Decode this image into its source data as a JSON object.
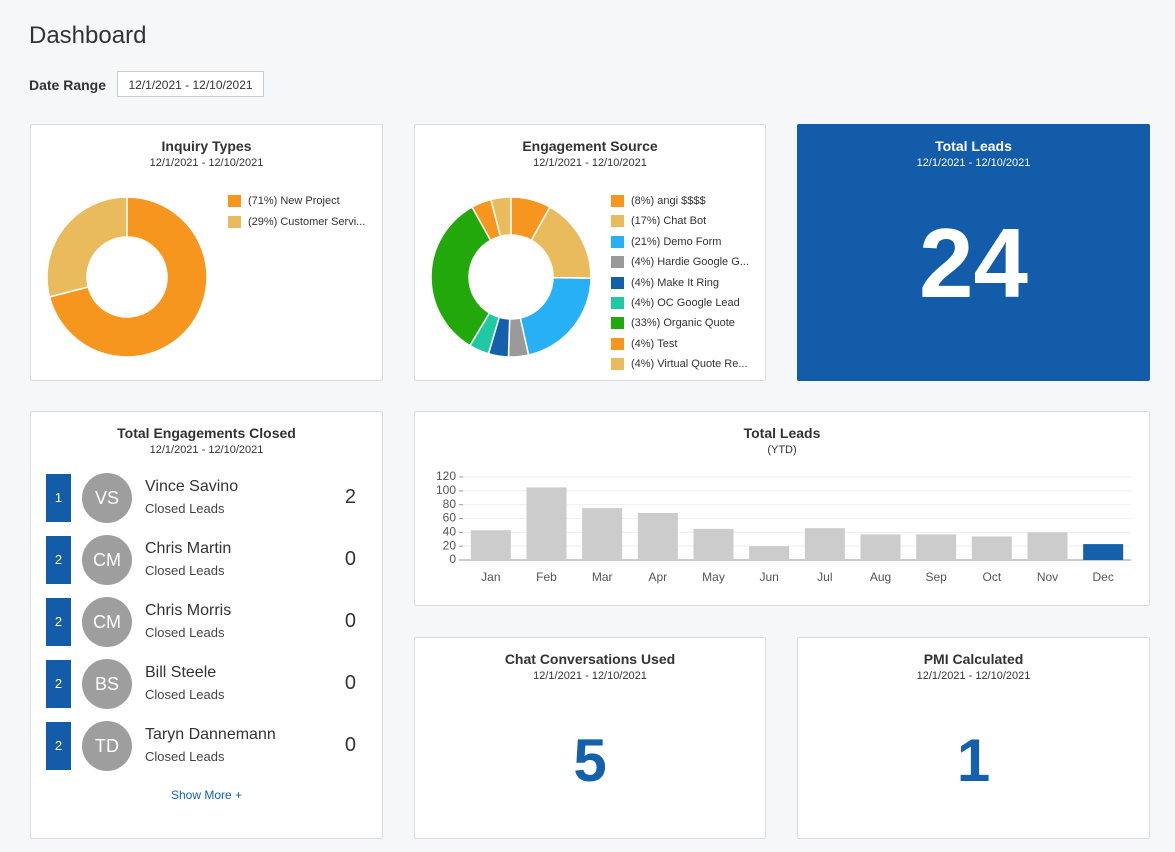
{
  "header": {
    "title": "Dashboard",
    "date_range_label": "Date Range",
    "date_range": "12/1/2021 - 12/10/2021"
  },
  "chart_data": [
    {
      "type": "pie",
      "title": "Inquiry Types",
      "subtitle": "12/1/2021 - 12/10/2021",
      "categories": [
        "New Project",
        "Customer Servi..."
      ],
      "values": [
        71,
        29
      ],
      "value_labels": [
        "(71%)",
        "(29%)"
      ],
      "colors": [
        "#f7961f",
        "#e9bb5c"
      ]
    },
    {
      "type": "pie",
      "title": "Engagement Source",
      "subtitle": "12/1/2021 - 12/10/2021",
      "categories": [
        "angi $$$$",
        "Chat Bot",
        "Demo Form",
        "Hardie Google G...",
        "Make It Ring",
        "OC Google Lead",
        "Organic Quote",
        "Test",
        "Virtual Quote Re..."
      ],
      "values": [
        8,
        17,
        21,
        4,
        4,
        4,
        33,
        4,
        4
      ],
      "value_labels": [
        "(8%)",
        "(17%)",
        "(21%)",
        "(4%)",
        "(4%)",
        "(4%)",
        "(33%)",
        "(4%)",
        "(4%)"
      ],
      "colors": [
        "#f7961f",
        "#e9bb5c",
        "#28b0f4",
        "#9a9a9a",
        "#1460ab",
        "#1fc9a4",
        "#22a80b",
        "#f7961f",
        "#e9bb5c"
      ]
    },
    {
      "type": "bar",
      "title": "Total Leads",
      "subtitle": "(YTD)",
      "categories": [
        "Jan",
        "Feb",
        "Mar",
        "Apr",
        "May",
        "Jun",
        "Jul",
        "Aug",
        "Sep",
        "Oct",
        "Nov",
        "Dec"
      ],
      "values": [
        43,
        105,
        75,
        68,
        45,
        20,
        46,
        37,
        37,
        34,
        40,
        23
      ],
      "colors": [
        "#cccccc",
        "#cccccc",
        "#cccccc",
        "#cccccc",
        "#cccccc",
        "#cccccc",
        "#cccccc",
        "#cccccc",
        "#cccccc",
        "#cccccc",
        "#cccccc",
        "#1460ab"
      ],
      "ylim": [
        0,
        120
      ],
      "yticks": [
        0,
        20,
        40,
        60,
        80,
        100,
        120
      ],
      "grid": true
    }
  ],
  "cards": {
    "total_leads": {
      "title": "Total Leads",
      "subtitle": "12/1/2021 - 12/10/2021",
      "value": 24
    },
    "chat": {
      "title": "Chat Conversations Used",
      "subtitle": "12/1/2021 - 12/10/2021",
      "value": 5
    },
    "pmi": {
      "title": "PMI Calculated",
      "subtitle": "12/1/2021 - 12/10/2021",
      "value": 1
    }
  },
  "engagements": {
    "title": "Total Engagements Closed",
    "subtitle": "12/1/2021 - 12/10/2021",
    "rows": [
      {
        "rank": 1,
        "initials": "VS",
        "name": "Vince Savino",
        "label": "Closed Leads",
        "count": 2
      },
      {
        "rank": 2,
        "initials": "CM",
        "name": "Chris Martin",
        "label": "Closed Leads",
        "count": 0
      },
      {
        "rank": 2,
        "initials": "CM",
        "name": "Chris Morris",
        "label": "Closed Leads",
        "count": 0
      },
      {
        "rank": 2,
        "initials": "BS",
        "name": "Bill Steele",
        "label": "Closed Leads",
        "count": 0
      },
      {
        "rank": 2,
        "initials": "TD",
        "name": "Taryn Dannemann",
        "label": "Closed Leads",
        "count": 0
      }
    ],
    "show_more": "Show More +"
  }
}
